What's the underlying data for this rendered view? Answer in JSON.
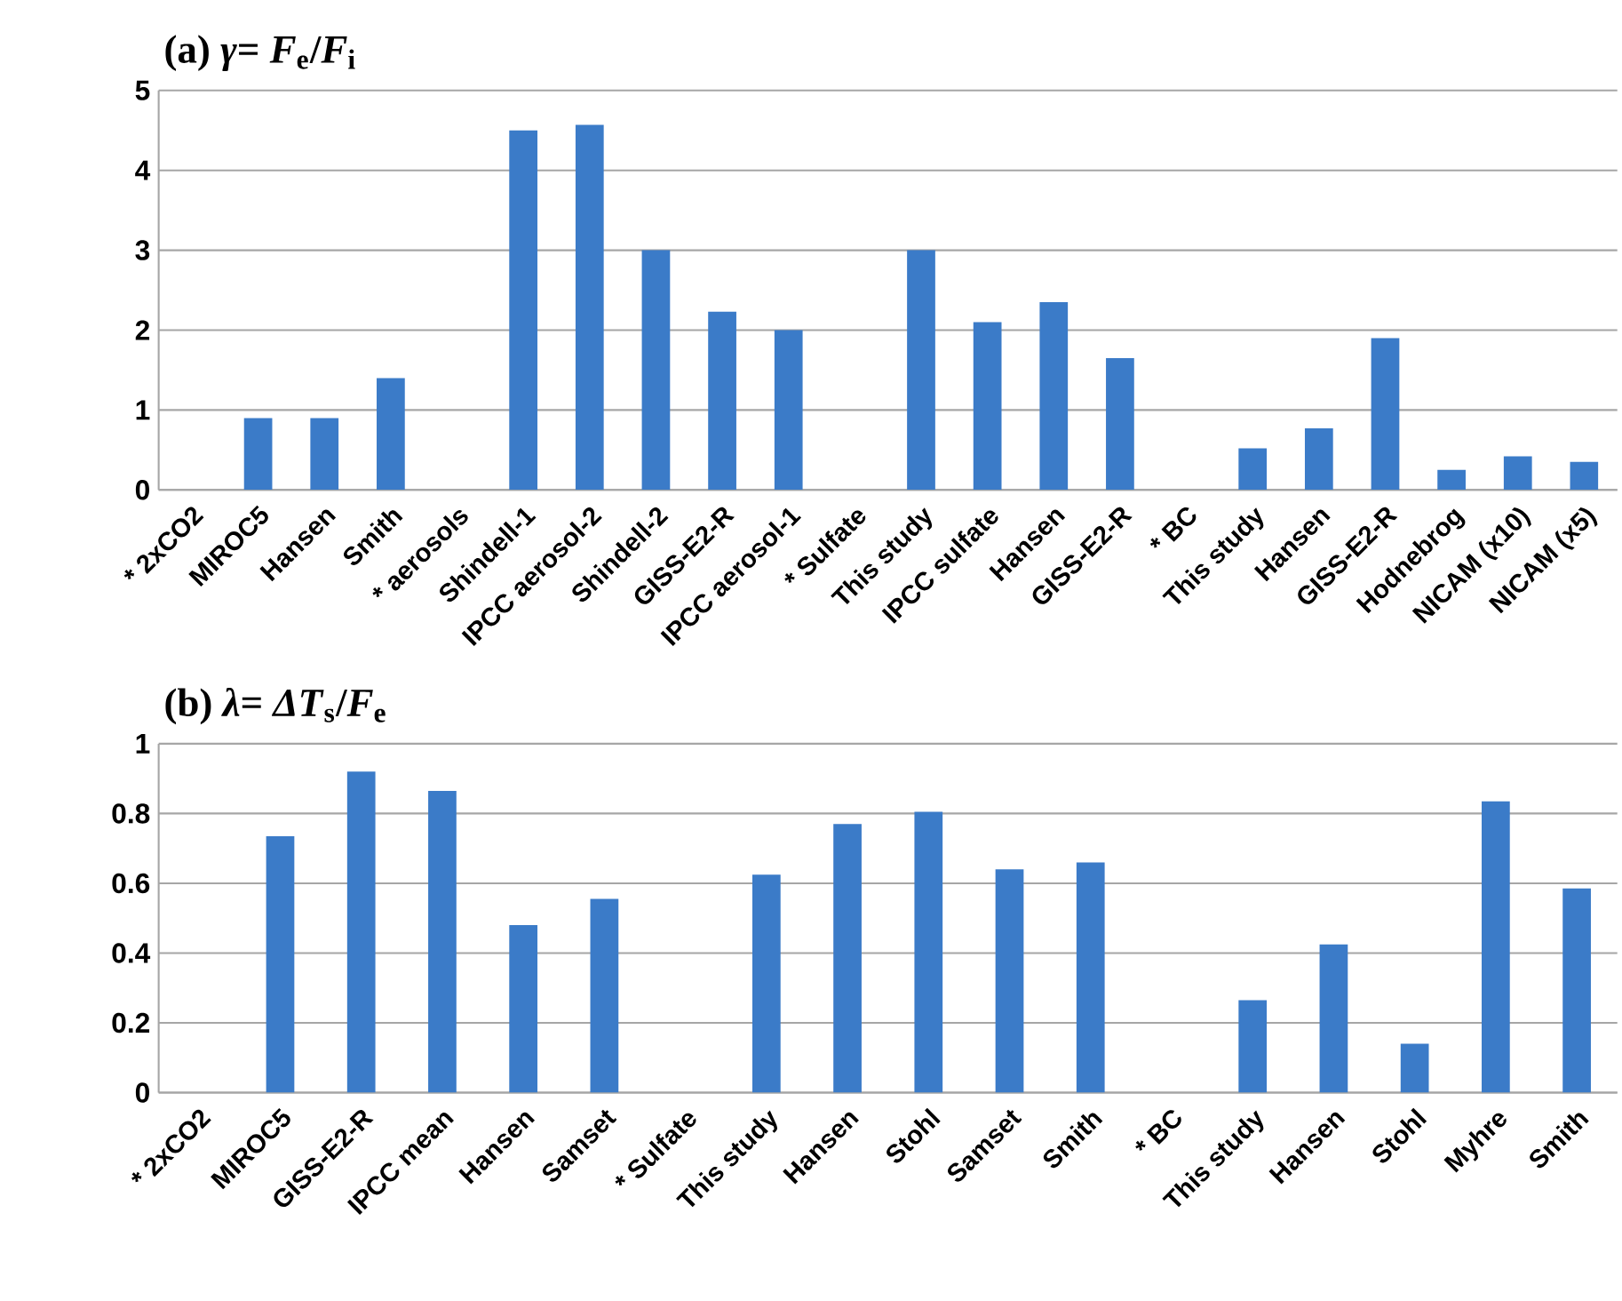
{
  "chart_data": [
    {
      "type": "bar",
      "title": "(a) *γ*= *F*$_{e}$/*F*$_{i}$",
      "categories": [
        "* 2xCO2",
        "MIROC5",
        "Hansen",
        "Smith",
        "* aerosols",
        "Shindell-1",
        "IPCC aerosol-2",
        "Shindell-2",
        "GISS-E2-R",
        "IPCC aerosol-1",
        "* Sulfate",
        "This study",
        "IPCC sulfate",
        "Hansen",
        "GISS-E2-R",
        "* BC",
        "This study",
        "Hansen",
        "GISS-E2-R",
        "Hodnebrog",
        "NICAM (x10)",
        "NICAM (x5)"
      ],
      "values": [
        null,
        0.9,
        0.9,
        1.4,
        null,
        4.5,
        4.57,
        3.0,
        2.23,
        2.0,
        null,
        3.0,
        2.1,
        2.35,
        1.65,
        null,
        0.52,
        0.77,
        1.9,
        0.25,
        0.42,
        0.35
      ],
      "color": "#3b7bc8",
      "ylim": [
        0,
        5
      ],
      "yticks": [
        0,
        1,
        2,
        3,
        4,
        5
      ],
      "grid": "y"
    },
    {
      "type": "bar",
      "title": "(b) *λ*= *ΔT*$_{s}$/*F*$_{e}$",
      "categories": [
        "* 2xCO2",
        "MIROC5",
        "GISS-E2-R",
        "IPCC mean",
        "Hansen",
        "Samset",
        "* Sulfate",
        "This study",
        "Hansen",
        "Stohl",
        "Samset",
        "Smith",
        "* BC",
        "This study",
        "Hansen",
        "Stohl",
        "Myhre",
        "Smith"
      ],
      "values": [
        null,
        0.735,
        0.92,
        0.865,
        0.48,
        0.555,
        null,
        0.625,
        0.77,
        0.805,
        0.64,
        0.66,
        null,
        0.265,
        0.425,
        0.14,
        0.835,
        0.585
      ],
      "color": "#3b7bc8",
      "ylim": [
        0,
        1
      ],
      "yticks": [
        0,
        0.2,
        0.4,
        0.6,
        0.8,
        1
      ],
      "grid": "y"
    }
  ]
}
